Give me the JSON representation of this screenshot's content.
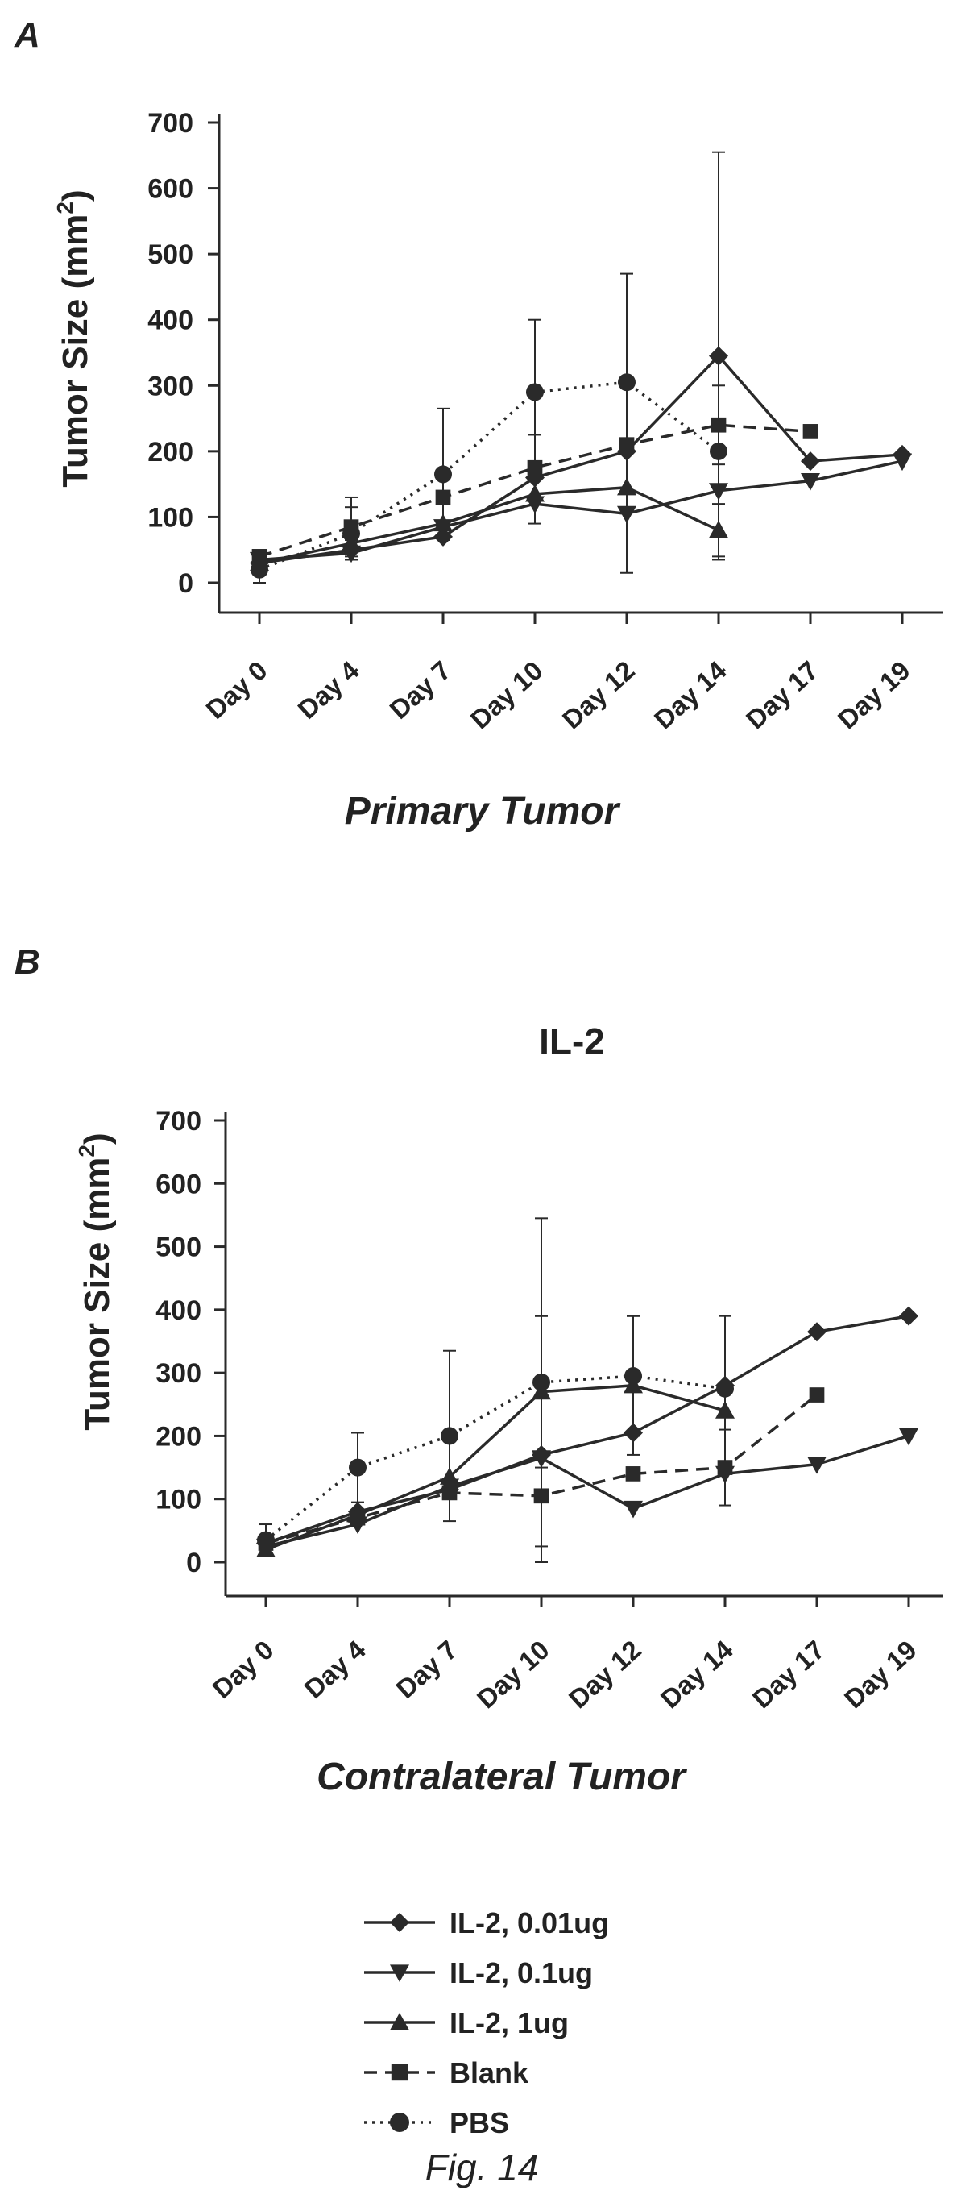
{
  "figure_label": "Fig. 14",
  "legend": [
    {
      "label": "IL-2, 0.01ug",
      "marker": "diamond",
      "dash": "solid"
    },
    {
      "label": "IL-2, 0.1ug",
      "marker": "triangle-down",
      "dash": "solid"
    },
    {
      "label": "IL-2, 1ug",
      "marker": "triangle-up",
      "dash": "solid"
    },
    {
      "label": "Blank",
      "marker": "square",
      "dash": "dashed"
    },
    {
      "label": "PBS",
      "marker": "circle",
      "dash": "dotted"
    }
  ],
  "chart_data": [
    {
      "type": "line",
      "panel_label": "A",
      "title": "",
      "caption": "Primary Tumor",
      "ylabel": "Tumor Size (mm",
      "ylabel_superscript": "2",
      "ylabel_suffix": ")",
      "ylim": [
        0,
        700
      ],
      "yticks": [
        0,
        100,
        200,
        300,
        400,
        500,
        600,
        700
      ],
      "categories": [
        "Day 0",
        "Day 4",
        "Day 7",
        "Day 10",
        "Day 12",
        "Day 14",
        "Day 17",
        "Day 19"
      ],
      "series": [
        {
          "name": "IL-2, 0.01ug",
          "values": [
            30,
            50,
            70,
            160,
            200,
            345,
            185,
            195
          ],
          "err": [
            0,
            15,
            0,
            0,
            0,
            310,
            0,
            0
          ]
        },
        {
          "name": "IL-2, 0.1ug",
          "values": [
            35,
            45,
            85,
            120,
            105,
            140,
            155,
            185
          ],
          "err": [
            0,
            0,
            0,
            0,
            90,
            0,
            0,
            0
          ]
        },
        {
          "name": "IL-2, 1ug",
          "values": [
            30,
            60,
            90,
            135,
            145,
            80,
            null,
            null
          ],
          "err": [
            0,
            0,
            0,
            45,
            0,
            40,
            0,
            0
          ]
        },
        {
          "name": "Blank",
          "values": [
            40,
            85,
            130,
            175,
            210,
            240,
            230,
            null
          ],
          "err": [
            0,
            45,
            0,
            50,
            0,
            60,
            0,
            0
          ]
        },
        {
          "name": "PBS",
          "values": [
            20,
            75,
            165,
            290,
            305,
            200,
            null,
            null
          ],
          "err": [
            25,
            40,
            100,
            110,
            165,
            0,
            0,
            0
          ]
        }
      ]
    },
    {
      "type": "line",
      "panel_label": "B",
      "title": "IL-2",
      "caption": "Contralateral Tumor",
      "ylabel": "Tumor Size (mm",
      "ylabel_superscript": "2",
      "ylabel_suffix": ")",
      "ylim": [
        0,
        700
      ],
      "yticks": [
        0,
        100,
        200,
        300,
        400,
        500,
        600,
        700
      ],
      "categories": [
        "Day 0",
        "Day 4",
        "Day 7",
        "Day 10",
        "Day 12",
        "Day 14",
        "Day 17",
        "Day 19"
      ],
      "series": [
        {
          "name": "IL-2, 0.01ug",
          "values": [
            30,
            80,
            115,
            170,
            205,
            280,
            365,
            390
          ],
          "err": [
            0,
            0,
            0,
            220,
            0,
            0,
            0,
            0
          ]
        },
        {
          "name": "IL-2, 0.1ug",
          "values": [
            25,
            60,
            120,
            165,
            85,
            140,
            155,
            200
          ],
          "err": [
            0,
            0,
            0,
            0,
            0,
            0,
            0,
            0
          ]
        },
        {
          "name": "IL-2, 1ug",
          "values": [
            20,
            75,
            135,
            270,
            280,
            240,
            null,
            null
          ],
          "err": [
            0,
            0,
            0,
            120,
            110,
            0,
            0,
            0
          ]
        },
        {
          "name": "Blank",
          "values": [
            30,
            70,
            110,
            105,
            140,
            150,
            265,
            null
          ],
          "err": [
            0,
            0,
            0,
            0,
            0,
            60,
            0,
            0
          ]
        },
        {
          "name": "PBS",
          "values": [
            35,
            150,
            200,
            285,
            295,
            275,
            null,
            null
          ],
          "err": [
            25,
            55,
            135,
            260,
            95,
            115,
            0,
            0
          ]
        }
      ]
    }
  ]
}
